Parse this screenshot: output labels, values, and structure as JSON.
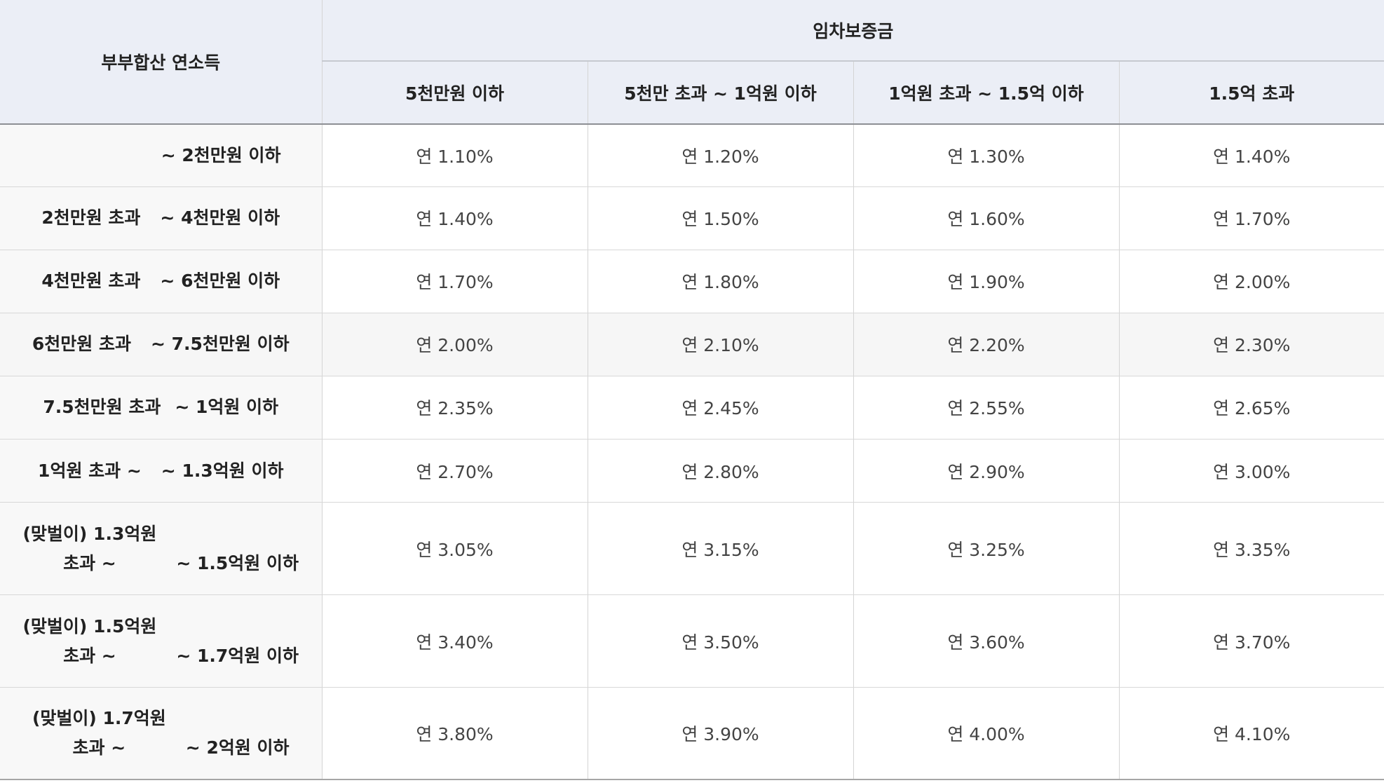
{
  "table": {
    "income_header": "부부합산 연소득",
    "deposit_group_header": "임차보증금",
    "deposit_columns": [
      "5천만원 이하",
      "5천만 초과 ~ 1억원 이하",
      "1억원 초과 ~ 1.5억 이하",
      "1.5억 초과"
    ],
    "rows": [
      {
        "income_from": "",
        "income_from_line2": "",
        "income_to": "~ 2천만원 이하",
        "rates": [
          "연 1.10%",
          "연 1.20%",
          "연 1.30%",
          "연 1.40%"
        ]
      },
      {
        "income_from": "2천만원 초과",
        "income_from_line2": "",
        "income_to": "~ 4천만원 이하",
        "rates": [
          "연 1.40%",
          "연 1.50%",
          "연 1.60%",
          "연 1.70%"
        ]
      },
      {
        "income_from": "4천만원 초과",
        "income_from_line2": "",
        "income_to": "~ 6천만원 이하",
        "rates": [
          "연 1.70%",
          "연 1.80%",
          "연 1.90%",
          "연 2.00%"
        ]
      },
      {
        "income_from": "6천만원 초과",
        "income_from_line2": "",
        "income_to": "~ 7.5천만원 이하",
        "rates": [
          "연 2.00%",
          "연 2.10%",
          "연 2.20%",
          "연 2.30%"
        ]
      },
      {
        "income_from": "7.5천만원 초과",
        "income_from_line2": "",
        "income_to": "~ 1억원 이하",
        "rates": [
          "연 2.35%",
          "연 2.45%",
          "연 2.55%",
          "연 2.65%"
        ]
      },
      {
        "income_from": "1억원 초과 ~",
        "income_from_line2": "",
        "income_to": "~ 1.3억원 이하",
        "rates": [
          "연 2.70%",
          "연 2.80%",
          "연 2.90%",
          "연 3.00%"
        ]
      },
      {
        "income_from": "(맞벌이) 1.3억원",
        "income_from_line2": "초과 ~",
        "income_to": "~ 1.5억원 이하",
        "rates": [
          "연 3.05%",
          "연 3.15%",
          "연 3.25%",
          "연 3.35%"
        ]
      },
      {
        "income_from": "(맞벌이) 1.5억원",
        "income_from_line2": "초과 ~",
        "income_to": "~ 1.7억원 이하",
        "rates": [
          "연 3.40%",
          "연 3.50%",
          "연 3.60%",
          "연 3.70%"
        ]
      },
      {
        "income_from": "(맞벌이) 1.7억원",
        "income_from_line2": "초과 ~",
        "income_to": "~ 2억원 이하",
        "rates": [
          "연 3.80%",
          "연 3.90%",
          "연 4.00%",
          "연 4.10%"
        ]
      }
    ]
  }
}
